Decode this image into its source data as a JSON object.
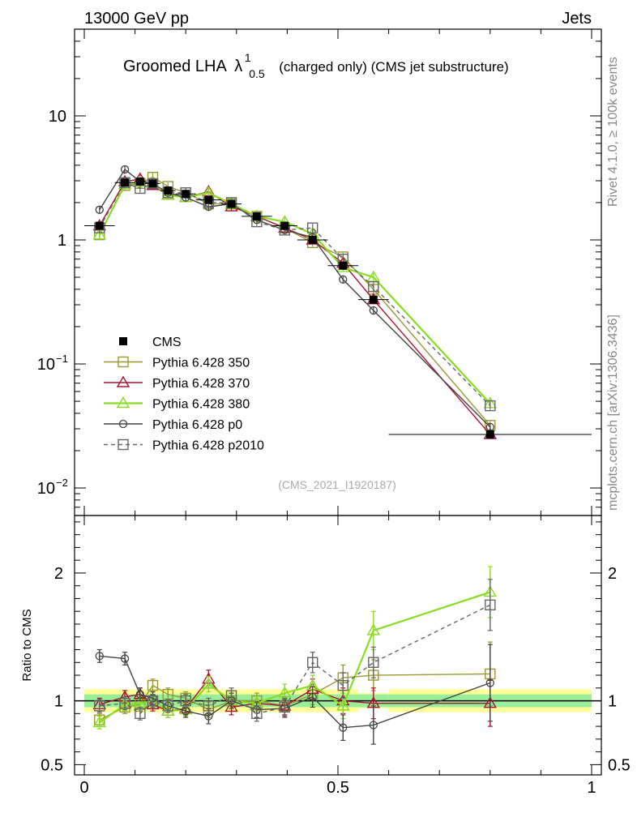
{
  "header": {
    "left": "13000 GeV pp",
    "right": "Jets"
  },
  "side_labels": {
    "rivet": "Rivet 4.1.0, ≥ 100k events",
    "mcplots": "mcplots.cern.ch [arXiv:1306.3436]"
  },
  "chart_data": {
    "type": "line",
    "title": {
      "main": "Groomed LHA",
      "lambda": "λ",
      "sup": "1",
      "sub": "0.5",
      "rest": "(charged only) (CMS jet substructure)"
    },
    "analysis_tag": "(CMS_2021_I1920187)",
    "ratio_ylabel": "Ratio to CMS",
    "xlim": [
      0,
      1
    ],
    "ylim_main": [
      0.006,
      50
    ],
    "ylim_ratio": [
      0.42,
      2.45
    ],
    "x_ticks": [
      0,
      0.5,
      1
    ],
    "x_tick_labels": [
      "0",
      "0.5",
      "1"
    ],
    "main_y_ticks": [
      {
        "value": 10,
        "base": "10",
        "exp": ""
      },
      {
        "value": 1,
        "base": "1",
        "exp": ""
      },
      {
        "value": 0.1,
        "base": "10",
        "exp": "−1"
      },
      {
        "value": 0.01,
        "base": "10",
        "exp": "−2"
      }
    ],
    "ratio_y_ticks": [
      {
        "value": 2,
        "label": "2"
      },
      {
        "value": 1,
        "label": "1"
      },
      {
        "value": 0.5,
        "label": "0.5"
      }
    ],
    "bin_edges": [
      0,
      0.06,
      0.1,
      0.12,
      0.15,
      0.18,
      0.22,
      0.27,
      0.31,
      0.37,
      0.42,
      0.48,
      0.54,
      0.6,
      1.0
    ],
    "x": [
      0.03,
      0.08,
      0.11,
      0.135,
      0.165,
      0.2,
      0.245,
      0.29,
      0.34,
      0.395,
      0.45,
      0.51,
      0.57,
      0.8
    ],
    "data": {
      "name": "CMS",
      "values": [
        1.3,
        2.9,
        2.95,
        2.85,
        2.5,
        2.35,
        2.1,
        1.95,
        1.55,
        1.3,
        1.0,
        0.62,
        0.33,
        0.027
      ],
      "band_inner": [
        0.05,
        0.05,
        0.05,
        0.05,
        0.05,
        0.05,
        0.05,
        0.05,
        0.05,
        0.05,
        0.05,
        0.05,
        0.05,
        0.05
      ],
      "band_outer": [
        0.09,
        0.09,
        0.09,
        0.09,
        0.09,
        0.09,
        0.09,
        0.09,
        0.09,
        0.09,
        0.09,
        0.09,
        0.06,
        0.09
      ]
    },
    "series": [
      {
        "name": "Pythia 6.428 350",
        "color": "#999933",
        "marker": "square",
        "dashed": false,
        "values": [
          1.1,
          2.75,
          2.85,
          3.2,
          2.7,
          2.4,
          1.95,
          1.95,
          1.55,
          1.25,
          0.95,
          0.73,
          0.4,
          0.032
        ],
        "ratio": [
          0.85,
          0.95,
          0.97,
          1.12,
          1.05,
          1.02,
          0.93,
          1.0,
          1.0,
          0.96,
          1.05,
          1.18,
          1.2,
          1.21
        ],
        "ratio_err": [
          0.05,
          0.05,
          0.05,
          0.05,
          0.05,
          0.05,
          0.06,
          0.06,
          0.06,
          0.07,
          0.08,
          0.1,
          0.12,
          0.25
        ]
      },
      {
        "name": "Pythia 6.428 370",
        "color": "#aa1133",
        "marker": "triangle",
        "dashed": false,
        "values": [
          1.3,
          2.95,
          3.1,
          2.75,
          2.3,
          2.2,
          2.45,
          1.85,
          1.55,
          1.25,
          1.0,
          0.65,
          0.33,
          0.027
        ],
        "ratio": [
          0.97,
          1.03,
          1.05,
          0.97,
          0.92,
          0.94,
          1.17,
          0.95,
          0.98,
          0.96,
          1.09,
          1.0,
          0.98,
          0.98
        ],
        "ratio_err": [
          0.05,
          0.05,
          0.05,
          0.05,
          0.05,
          0.05,
          0.07,
          0.06,
          0.06,
          0.07,
          0.08,
          0.1,
          0.12,
          0.18
        ]
      },
      {
        "name": "Pythia 6.428 380",
        "color": "#88dd22",
        "marker": "triangle",
        "dashed": false,
        "values": [
          1.1,
          2.8,
          2.9,
          2.85,
          2.3,
          2.2,
          2.4,
          1.95,
          1.55,
          1.4,
          1.12,
          0.6,
          0.5,
          0.048
        ],
        "ratio": [
          0.83,
          0.97,
          0.98,
          1.0,
          0.92,
          0.93,
          1.13,
          1.0,
          0.98,
          1.06,
          1.12,
          0.96,
          1.55,
          1.85
        ],
        "ratio_err": [
          0.05,
          0.05,
          0.05,
          0.05,
          0.05,
          0.05,
          0.06,
          0.06,
          0.06,
          0.07,
          0.08,
          0.1,
          0.15,
          0.2
        ]
      },
      {
        "name": "Pythia 6.428 p0",
        "color": "#444444",
        "marker": "circle",
        "dashed": false,
        "values": [
          1.75,
          3.7,
          2.95,
          2.85,
          2.4,
          2.2,
          1.85,
          1.95,
          1.45,
          1.2,
          1.05,
          0.48,
          0.27,
          0.031
        ],
        "ratio": [
          1.35,
          1.33,
          1.05,
          1.02,
          0.96,
          0.92,
          0.88,
          1.0,
          0.93,
          0.94,
          1.03,
          0.79,
          0.81,
          1.14
        ],
        "ratio_err": [
          0.05,
          0.05,
          0.05,
          0.05,
          0.05,
          0.05,
          0.06,
          0.06,
          0.06,
          0.07,
          0.08,
          0.1,
          0.15,
          0.3
        ]
      },
      {
        "name": "Pythia 6.428 p2010",
        "color": "#666666",
        "marker": "square",
        "dashed": true,
        "values": [
          1.25,
          2.9,
          2.6,
          2.85,
          2.4,
          2.4,
          2.0,
          2.0,
          1.4,
          1.2,
          1.25,
          0.7,
          0.42,
          0.046
        ],
        "ratio": [
          0.96,
          0.98,
          0.9,
          1.0,
          0.96,
          1.0,
          0.96,
          1.04,
          0.9,
          0.95,
          1.3,
          1.12,
          1.3,
          1.75
        ],
        "ratio_err": [
          0.05,
          0.05,
          0.05,
          0.05,
          0.05,
          0.05,
          0.06,
          0.06,
          0.06,
          0.07,
          0.08,
          0.1,
          0.12,
          0.2
        ]
      }
    ]
  }
}
